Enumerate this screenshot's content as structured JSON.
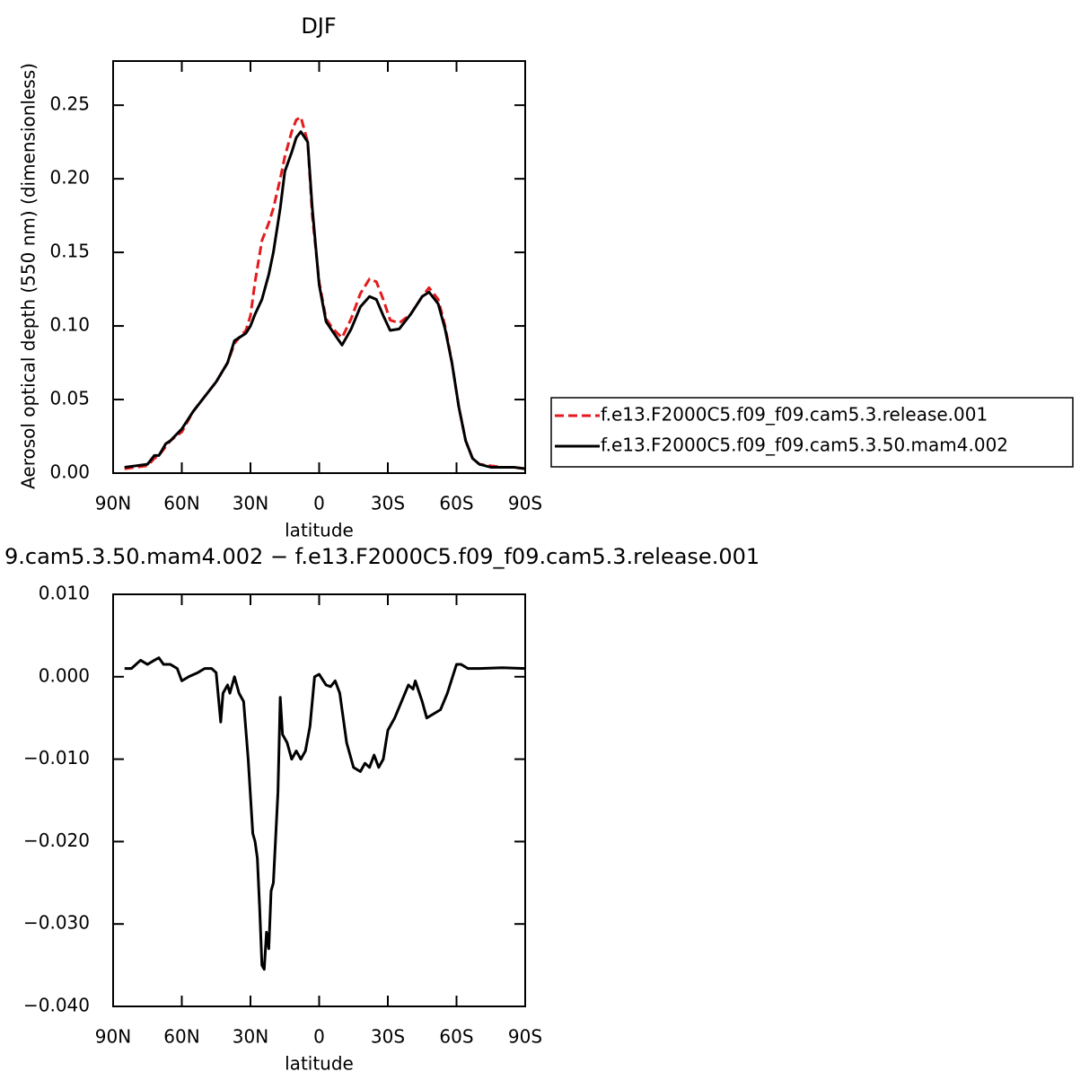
{
  "chart_data": [
    {
      "type": "line",
      "title": "DJF",
      "xlabel": "latitude",
      "ylabel": "Aerosol optical depth (550 nm) (dimensionless)",
      "x": [
        85,
        80,
        75,
        72,
        70,
        67,
        65,
        60,
        55,
        50,
        45,
        40,
        37,
        35,
        32,
        30,
        28,
        25,
        22,
        20,
        17,
        15,
        12,
        10,
        8,
        5,
        3,
        0,
        -3,
        -6,
        -10,
        -14,
        -18,
        -22,
        -25,
        -28,
        -31,
        -35,
        -40,
        -45,
        -48,
        -52,
        -55,
        -58,
        -61,
        -64,
        -67,
        -70,
        -75,
        -80,
        -85,
        -90
      ],
      "series": [
        {
          "name": "f.e13.F2000C5.f09_f09.cam5.3.release.001",
          "color": "#e41a1c",
          "dashed": true,
          "values": [
            0.003,
            0.004,
            0.005,
            0.01,
            0.012,
            0.018,
            0.022,
            0.028,
            0.042,
            0.052,
            0.062,
            0.075,
            0.088,
            0.092,
            0.097,
            0.107,
            0.13,
            0.158,
            0.17,
            0.18,
            0.2,
            0.215,
            0.232,
            0.24,
            0.242,
            0.225,
            0.175,
            0.13,
            0.105,
            0.098,
            0.092,
            0.105,
            0.122,
            0.132,
            0.13,
            0.118,
            0.104,
            0.102,
            0.108,
            0.12,
            0.126,
            0.118,
            0.1,
            0.075,
            0.045,
            0.022,
            0.01,
            0.006,
            0.005,
            0.004,
            0.004,
            0.003
          ]
        },
        {
          "name": "f.e13.F2000C5.f09_f09.cam5.3.50.mam4.002",
          "color": "#000000",
          "dashed": false,
          "values": [
            0.004,
            0.005,
            0.006,
            0.012,
            0.012,
            0.02,
            0.022,
            0.03,
            0.042,
            0.052,
            0.062,
            0.075,
            0.09,
            0.092,
            0.095,
            0.1,
            0.108,
            0.118,
            0.135,
            0.15,
            0.18,
            0.205,
            0.218,
            0.228,
            0.232,
            0.225,
            0.18,
            0.128,
            0.103,
            0.096,
            0.087,
            0.098,
            0.113,
            0.12,
            0.118,
            0.107,
            0.097,
            0.098,
            0.108,
            0.12,
            0.123,
            0.115,
            0.098,
            0.075,
            0.045,
            0.022,
            0.01,
            0.006,
            0.004,
            0.004,
            0.004,
            0.003
          ]
        }
      ],
      "xlim": [
        90,
        -90
      ],
      "xticks": [
        {
          "value": 90,
          "label": "90N"
        },
        {
          "value": 60,
          "label": "60N"
        },
        {
          "value": 30,
          "label": "30N"
        },
        0,
        {
          "value": -30,
          "label": "30S"
        },
        {
          "value": -60,
          "label": "60S"
        },
        {
          "value": -90,
          "label": "90S"
        }
      ],
      "ylim": [
        0,
        0.28
      ],
      "yticks": [
        {
          "value": 0,
          "label": "0.00"
        },
        {
          "value": 0.05,
          "label": "0.05"
        },
        {
          "value": 0.1,
          "label": "0.10"
        },
        {
          "value": 0.15,
          "label": "0.15"
        },
        {
          "value": 0.2,
          "label": "0.20"
        },
        {
          "value": 0.25,
          "label": "0.25"
        }
      ],
      "legend": "outside-right"
    },
    {
      "type": "line",
      "title": "9.cam5.3.50.mam4.002 − f.e13.F2000C5.f09_f09.cam5.3.release.001",
      "xlabel": "latitude",
      "x": [
        85,
        82,
        78,
        75,
        72,
        70,
        68,
        65,
        62,
        60,
        57,
        53,
        50,
        47,
        45,
        43,
        42,
        40,
        39,
        37,
        35,
        33,
        31,
        29,
        28,
        27,
        26,
        25,
        24,
        23,
        22,
        21,
        20,
        18,
        17,
        16,
        14,
        12,
        10,
        8,
        6,
        4,
        2,
        0,
        -3,
        -5,
        -7,
        -9,
        -12,
        -15,
        -18,
        -20,
        -22,
        -24,
        -26,
        -28,
        -30,
        -33,
        -36,
        -39,
        -41,
        -42,
        -45,
        -47,
        -50,
        -53,
        -56,
        -60,
        -62,
        -65,
        -70,
        -80,
        -90
      ],
      "color": "#000000",
      "values": [
        0.001,
        0.001,
        0.002,
        0.0015,
        0.002,
        0.0023,
        0.0015,
        0.0015,
        0.001,
        -0.0005,
        0,
        0.0005,
        0.001,
        0.001,
        0.0005,
        -0.0055,
        -0.002,
        -0.001,
        -0.002,
        0,
        -0.002,
        -0.003,
        -0.01,
        -0.019,
        -0.02,
        -0.022,
        -0.028,
        -0.035,
        -0.0355,
        -0.031,
        -0.033,
        -0.026,
        -0.025,
        -0.014,
        -0.0025,
        -0.007,
        -0.008,
        -0.01,
        -0.009,
        -0.01,
        -0.009,
        -0.006,
        0,
        0.0003,
        -0.001,
        -0.0012,
        -0.0005,
        -0.002,
        -0.008,
        -0.011,
        -0.0115,
        -0.0105,
        -0.011,
        -0.0095,
        -0.011,
        -0.01,
        -0.0065,
        -0.005,
        -0.003,
        -0.001,
        -0.0015,
        -0.0005,
        -0.003,
        -0.005,
        -0.0045,
        -0.004,
        -0.002,
        0.0015,
        0.0015,
        0.001,
        0.001,
        0.0011,
        0.001
      ],
      "xlim": [
        90,
        -90
      ],
      "xticks": [
        {
          "value": 90,
          "label": "90N"
        },
        {
          "value": 60,
          "label": "60N"
        },
        {
          "value": 30,
          "label": "30N"
        },
        0,
        {
          "value": -30,
          "label": "30S"
        },
        {
          "value": -60,
          "label": "60S"
        },
        {
          "value": -90,
          "label": "90S"
        }
      ],
      "ylim": [
        -0.04,
        0.01
      ],
      "yticks": [
        {
          "value": 0.01,
          "label": "0.010"
        },
        {
          "value": 0,
          "label": "0.000"
        },
        {
          "value": -0.01,
          "label": "−0.010"
        },
        {
          "value": -0.02,
          "label": "−0.020"
        },
        {
          "value": -0.03,
          "label": "−0.030"
        },
        {
          "value": -0.04,
          "label": "−0.040"
        }
      ]
    }
  ]
}
